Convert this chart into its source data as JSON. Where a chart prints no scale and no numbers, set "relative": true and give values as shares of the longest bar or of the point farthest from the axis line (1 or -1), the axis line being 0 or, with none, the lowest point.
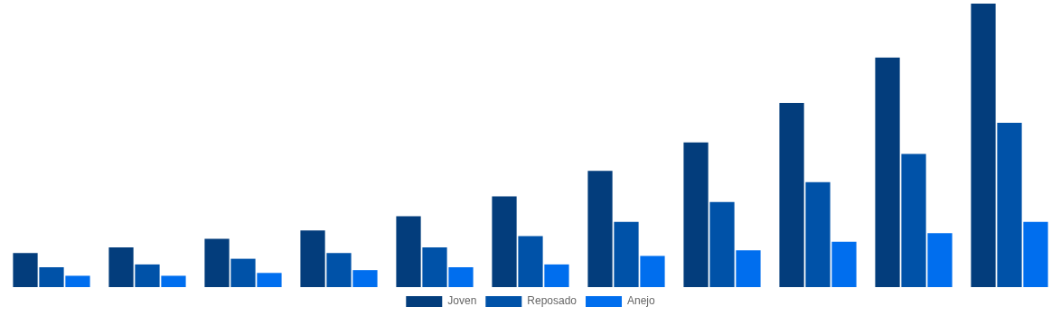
{
  "chart_data": {
    "type": "bar",
    "relative": true,
    "legend": "bottom",
    "categories": [
      null,
      null,
      null,
      null,
      null,
      null,
      null,
      null,
      null,
      null,
      null
    ],
    "series": [
      {
        "name": "Joven",
        "color": "#033d7c",
        "values": [
          0.12,
          0.14,
          0.17,
          0.2,
          0.25,
          0.32,
          0.41,
          0.51,
          0.65,
          0.81,
          1
        ]
      },
      {
        "name": "Reposado",
        "color": "#0052a8",
        "values": [
          0.07,
          0.08,
          0.1,
          0.12,
          0.14,
          0.18,
          0.23,
          0.3,
          0.37,
          0.47,
          0.58
        ]
      },
      {
        "name": "Anejo",
        "color": "#006eee",
        "values": [
          0.04,
          0.04,
          0.05,
          0.06,
          0.07,
          0.08,
          0.11,
          0.13,
          0.16,
          0.19,
          0.23
        ]
      }
    ]
  }
}
